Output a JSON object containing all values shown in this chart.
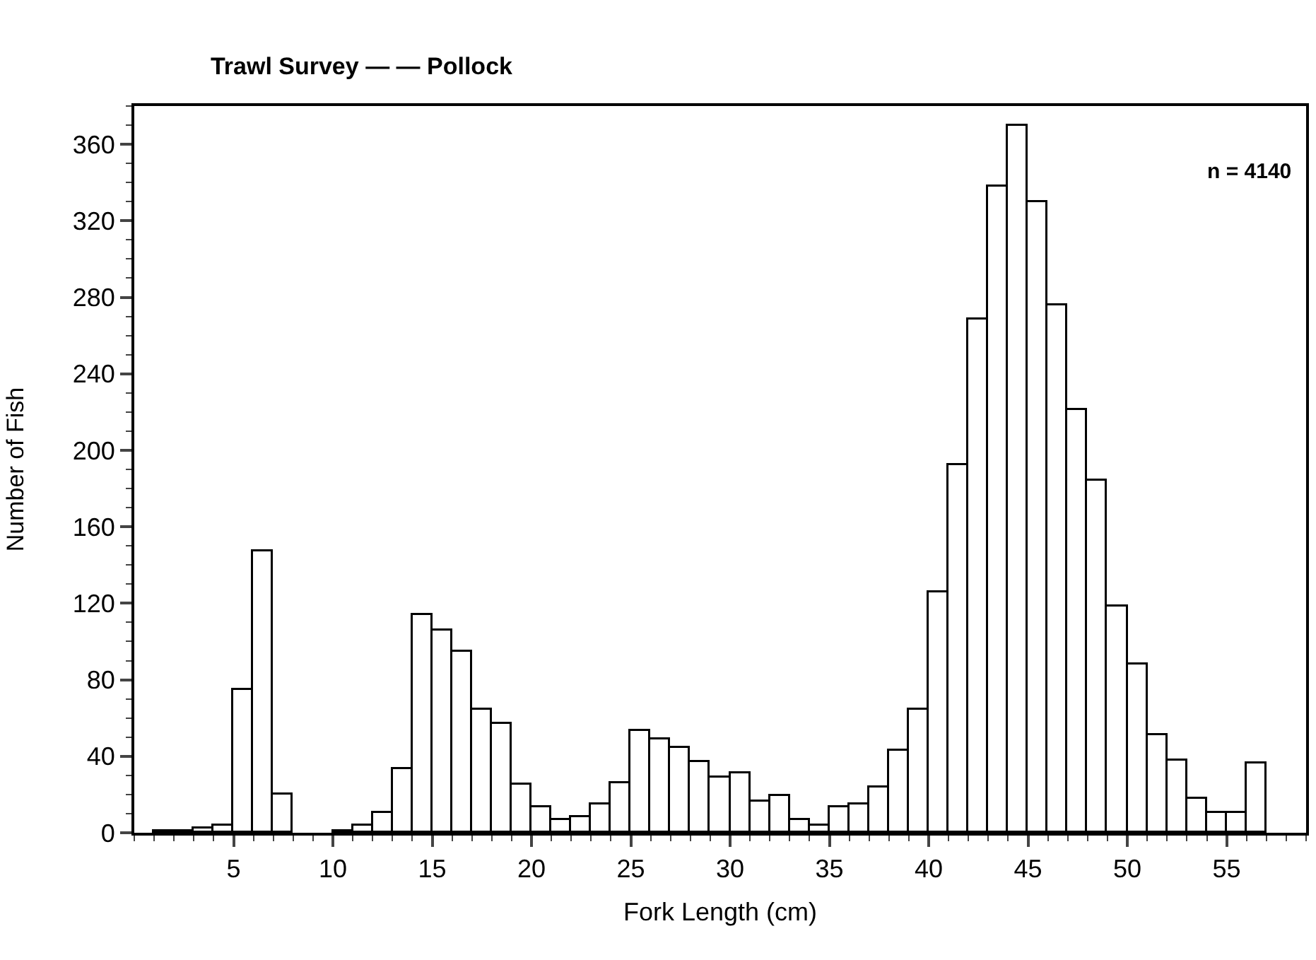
{
  "chart_data": {
    "type": "histogram",
    "title": "Trawl Survey — — Pollock",
    "xlabel": "Fork Length (cm)",
    "ylabel": "Number of Fish",
    "bins": [
      1,
      2,
      3,
      4,
      5,
      6,
      7,
      8,
      9,
      10,
      11,
      12,
      13,
      14,
      15,
      16,
      17,
      18,
      19,
      20,
      21,
      22,
      23,
      24,
      25,
      26,
      27,
      28,
      29,
      30,
      31,
      32,
      33,
      34,
      35,
      36,
      37,
      38,
      39,
      40,
      41,
      42,
      43,
      44,
      45,
      46,
      47,
      48,
      49,
      50,
      51,
      52,
      53,
      54,
      55,
      56,
      57
    ],
    "values": [
      1,
      1,
      2,
      4,
      75,
      147,
      20,
      0,
      0,
      1,
      4,
      10,
      33,
      114,
      106,
      95,
      64,
      57,
      25,
      13,
      7,
      8,
      15,
      26,
      53,
      49,
      44,
      37,
      29,
      31,
      16,
      19,
      7,
      4,
      13,
      15,
      24,
      43,
      64,
      126,
      192,
      268,
      338,
      370,
      330,
      276,
      221,
      184,
      118,
      88,
      51,
      38,
      18,
      10,
      10,
      36
    ],
    "color": "#ffffff",
    "xlim": [
      0,
      59
    ],
    "xticks": [
      5,
      10,
      15,
      20,
      25,
      30,
      35,
      40,
      45,
      50,
      55
    ],
    "ylim": [
      0,
      380
    ],
    "yticks": [
      0,
      40,
      80,
      120,
      160,
      200,
      240,
      280,
      320,
      360
    ],
    "annotations": [
      "n = 4140"
    ]
  }
}
